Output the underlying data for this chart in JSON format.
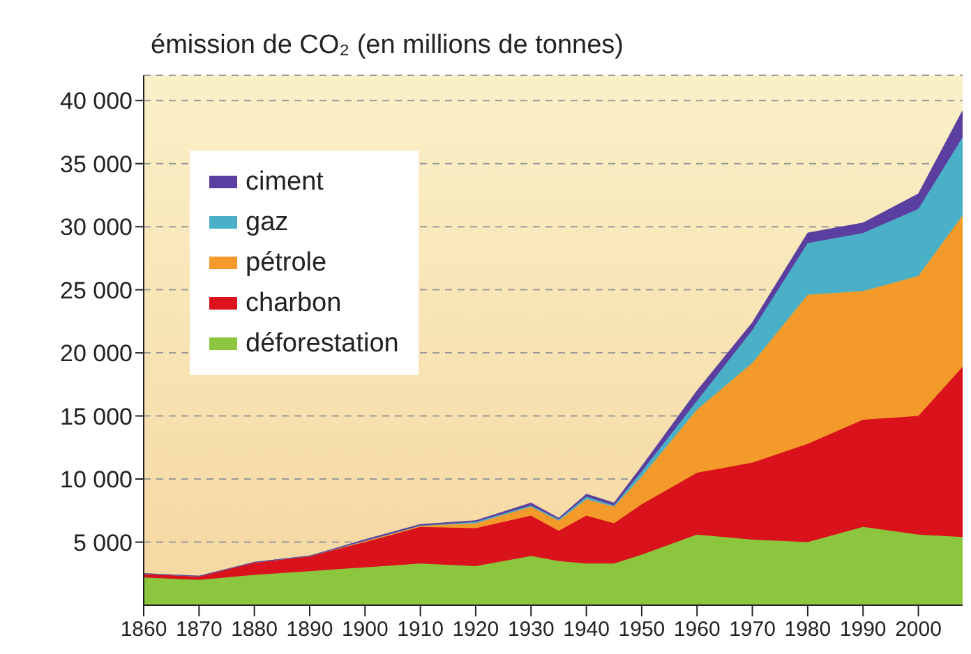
{
  "chart_data": {
    "type": "area",
    "stacked": true,
    "ylabel": "émission de CO₂ (en millions de tonnes)",
    "x": [
      1860,
      1870,
      1880,
      1890,
      1900,
      1910,
      1920,
      1930,
      1935,
      1940,
      1945,
      1950,
      1960,
      1970,
      1980,
      1990,
      2000,
      2008
    ],
    "series": [
      {
        "name": "déforestation",
        "color": "#8cc63e",
        "values": [
          2200,
          2000,
          2400,
          2700,
          3000,
          3300,
          3100,
          3900,
          3500,
          3300,
          3300,
          4000,
          5600,
          5200,
          5000,
          6200,
          5600,
          5400
        ]
      },
      {
        "name": "charbon",
        "color": "#d9121c",
        "values": [
          300,
          300,
          1000,
          1200,
          2000,
          2900,
          3000,
          3200,
          2400,
          3800,
          3200,
          4000,
          4900,
          6100,
          7800,
          8500,
          9400,
          13500
        ]
      },
      {
        "name": "pétrole",
        "color": "#f39a2a",
        "values": [
          0,
          0,
          0,
          0,
          100,
          100,
          400,
          700,
          800,
          1300,
          1300,
          2200,
          5000,
          7900,
          11800,
          10200,
          11100,
          12000
        ]
      },
      {
        "name": "gaz",
        "color": "#4ab0c8",
        "values": [
          0,
          0,
          0,
          0,
          0,
          0,
          100,
          100,
          100,
          200,
          100,
          400,
          700,
          2600,
          4100,
          4600,
          5300,
          6200
        ]
      },
      {
        "name": "ciment",
        "color": "#5b3fa0",
        "values": [
          0,
          0,
          0,
          0,
          100,
          100,
          100,
          200,
          100,
          200,
          200,
          400,
          800,
          600,
          800,
          800,
          1200,
          2100
        ]
      }
    ],
    "xlim": [
      1860,
      2008
    ],
    "xticks": [
      1860,
      1870,
      1880,
      1890,
      1900,
      1910,
      1920,
      1930,
      1940,
      1950,
      1960,
      1970,
      1980,
      1990,
      2000
    ],
    "ylim": [
      0,
      42000
    ],
    "yticks": [
      {
        "value": 5000,
        "label": "5 000"
      },
      {
        "value": 10000,
        "label": "10 000"
      },
      {
        "value": 15000,
        "label": "15 000"
      },
      {
        "value": 20000,
        "label": "20 000"
      },
      {
        "value": 25000,
        "label": "25 000"
      },
      {
        "value": 30000,
        "label": "30 000"
      },
      {
        "value": 35000,
        "label": "35 000"
      },
      {
        "value": 40000,
        "label": "40 000"
      }
    ],
    "grid": "y",
    "legend": "top left"
  }
}
